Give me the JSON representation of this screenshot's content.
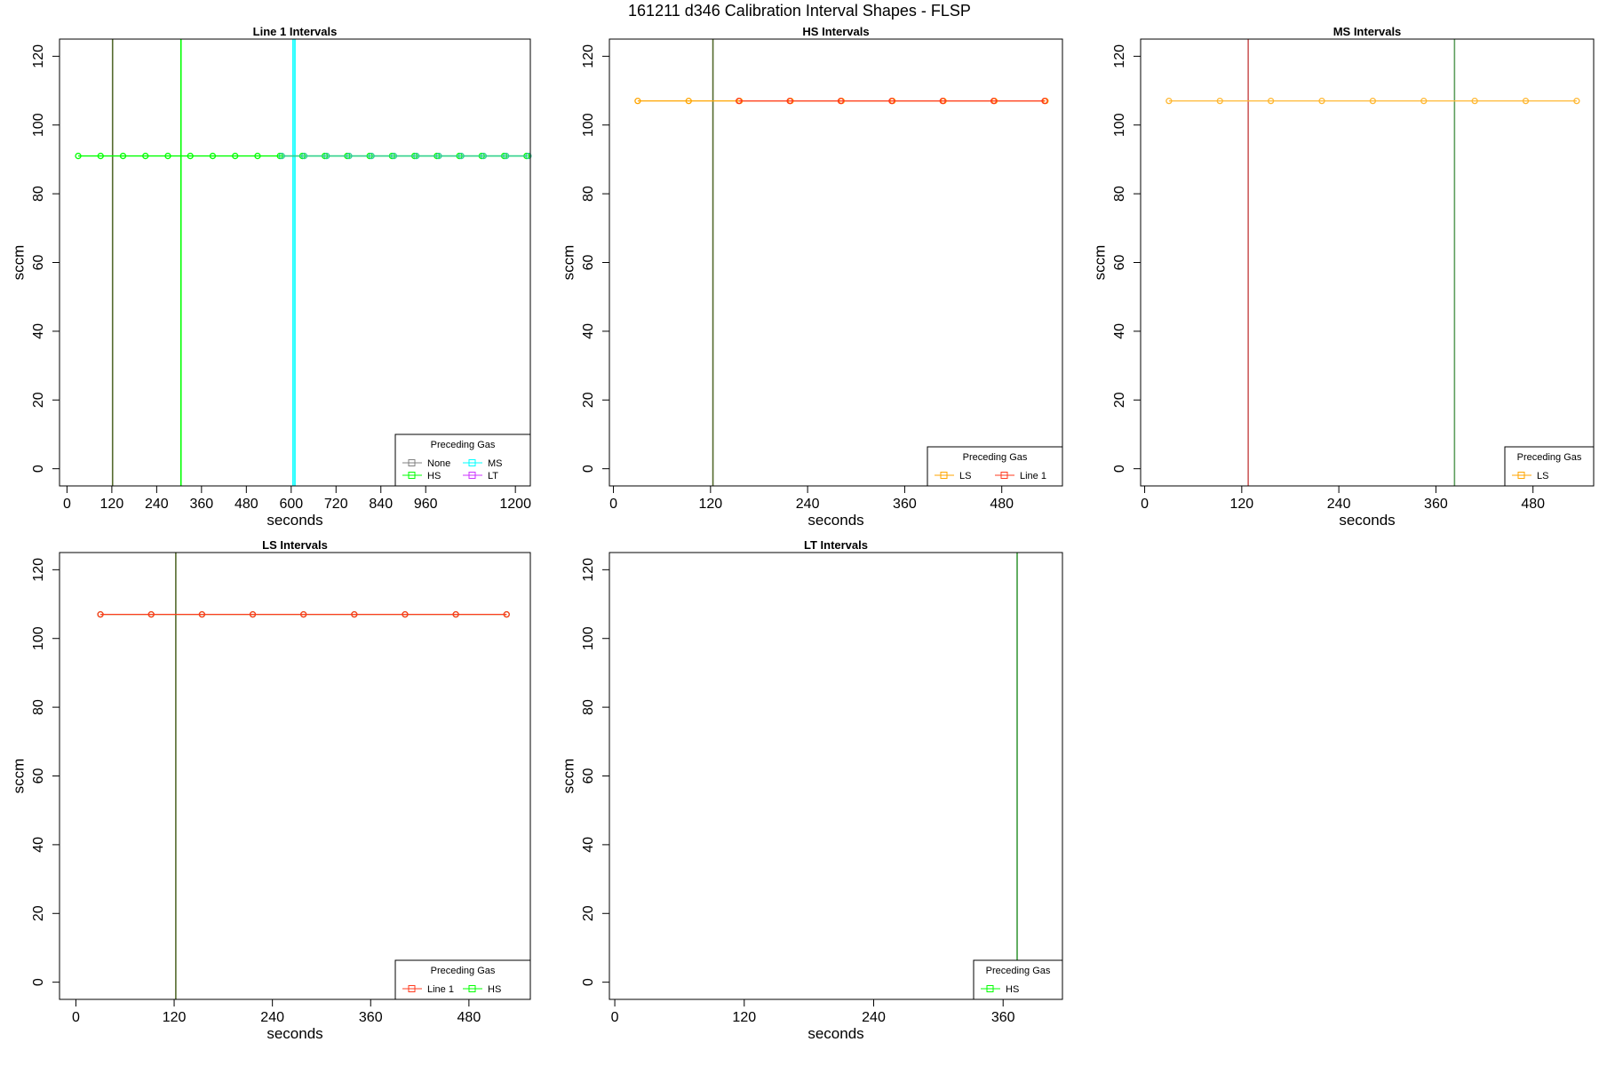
{
  "page": {
    "title": "161211   d346   Calibration Interval Shapes - FLSP"
  },
  "chart_data": [
    {
      "type": "line",
      "title": "Line 1 Intervals",
      "xlabel": "seconds",
      "ylabel": "sccm",
      "xlim": [
        -20,
        1240
      ],
      "ylim": [
        -5,
        125
      ],
      "xticks": [
        0,
        120,
        240,
        360,
        480,
        600,
        720,
        840,
        960,
        1200
      ],
      "yticks": [
        0,
        20,
        40,
        60,
        80,
        100,
        120
      ],
      "grid": false,
      "legend": {
        "title": "Preceding Gas",
        "position": "bottom-right",
        "columns": 2,
        "entries": [
          {
            "name": "None",
            "color": "#808080"
          },
          {
            "name": "MS",
            "color": "#00ffff"
          },
          {
            "name": "HS",
            "color": "#00ff00"
          },
          {
            "name": "LT",
            "color": "#cc33ff"
          }
        ]
      },
      "vlines": [
        {
          "x": 122,
          "color": "#556b2f"
        },
        {
          "x": 305,
          "color": "#00ff00"
        },
        {
          "x": 605,
          "color": "#00ffff"
        },
        {
          "x": 610,
          "color": "#00ffff"
        }
      ],
      "series": [
        {
          "name": "HS",
          "color": "#00ff00",
          "x": [
            30,
            90,
            150,
            210,
            270,
            330,
            390,
            450,
            510,
            570,
            630,
            690,
            750,
            810,
            870,
            930,
            990,
            1050,
            1110,
            1170,
            1230
          ],
          "values": [
            91,
            91,
            91,
            91,
            91,
            91,
            91,
            91,
            91,
            91,
            91,
            91,
            91,
            91,
            91,
            91,
            91,
            91,
            91,
            91,
            91
          ]
        },
        {
          "name": "MS",
          "color": "#33cc99",
          "x": [
            575,
            635,
            695,
            755,
            815,
            875,
            935,
            995,
            1055,
            1115,
            1175,
            1235
          ],
          "values": [
            91,
            91,
            91,
            91,
            91,
            91,
            91,
            91,
            91,
            91,
            91,
            91
          ]
        }
      ]
    },
    {
      "type": "line",
      "title": "HS Intervals",
      "xlabel": "seconds",
      "ylabel": "sccm",
      "xlim": [
        -5,
        555
      ],
      "ylim": [
        -5,
        125
      ],
      "xticks": [
        0,
        120,
        240,
        360,
        480
      ],
      "yticks": [
        0,
        20,
        40,
        60,
        80,
        100,
        120
      ],
      "grid": false,
      "legend": {
        "title": "Preceding Gas",
        "position": "bottom-right",
        "columns": 2,
        "entries": [
          {
            "name": "LS",
            "color": "#ffa500"
          },
          {
            "name": "Line 1",
            "color": "#ff3b1f"
          }
        ]
      },
      "vlines": [
        {
          "x": 123,
          "color": "#556b2f"
        }
      ],
      "series": [
        {
          "name": "LS",
          "color": "#ffa500",
          "x": [
            30,
            93,
            156,
            219,
            282,
            345,
            408,
            471,
            534
          ],
          "values": [
            107,
            107,
            107,
            107,
            107,
            107,
            107,
            107,
            107
          ]
        },
        {
          "name": "Line 1",
          "color": "#ff3b1f",
          "x": [
            155,
            218,
            281,
            344,
            407,
            470,
            533
          ],
          "values": [
            107,
            107,
            107,
            107,
            107,
            107,
            107
          ]
        }
      ]
    },
    {
      "type": "line",
      "title": "MS Intervals",
      "xlabel": "seconds",
      "ylabel": "sccm",
      "xlim": [
        -5,
        555
      ],
      "ylim": [
        -5,
        125
      ],
      "xticks": [
        0,
        120,
        240,
        360,
        480
      ],
      "yticks": [
        0,
        20,
        40,
        60,
        80,
        100,
        120
      ],
      "grid": false,
      "legend": {
        "title": "Preceding Gas",
        "position": "bottom-right",
        "columns": 1,
        "entries": [
          {
            "name": "LS",
            "color": "#ffa500"
          }
        ]
      },
      "vlines": [
        {
          "x": 128,
          "color": "#cd5c5c"
        },
        {
          "x": 383,
          "color": "#5e9e5e"
        }
      ],
      "series": [
        {
          "name": "LS",
          "color": "#ffb833",
          "x": [
            30,
            93,
            156,
            219,
            282,
            345,
            408,
            471,
            534
          ],
          "values": [
            107,
            107,
            107,
            107,
            107,
            107,
            107,
            107,
            107
          ]
        }
      ]
    },
    {
      "type": "line",
      "title": "LS Intervals",
      "xlabel": "seconds",
      "ylabel": "sccm",
      "xlim": [
        -20,
        555
      ],
      "ylim": [
        -5,
        125
      ],
      "xticks": [
        0,
        120,
        240,
        360,
        480
      ],
      "yticks": [
        0,
        20,
        40,
        60,
        80,
        100,
        120
      ],
      "grid": false,
      "legend": {
        "title": "Preceding Gas",
        "position": "bottom-right",
        "columns": 2,
        "entries": [
          {
            "name": "Line 1",
            "color": "#ff3b1f"
          },
          {
            "name": "HS",
            "color": "#00ff00"
          }
        ]
      },
      "vlines": [
        {
          "x": 122,
          "color": "#556b2f"
        }
      ],
      "series": [
        {
          "name": "HS",
          "color": "#66cc33",
          "x": [
            30,
            92,
            154,
            216,
            278,
            340,
            402,
            464,
            526
          ],
          "values": [
            107,
            107,
            107,
            107,
            107,
            107,
            107,
            107,
            107
          ]
        },
        {
          "name": "Line 1",
          "color": "#ff3b1f",
          "x": [
            30,
            92,
            154,
            216,
            278,
            340,
            402,
            464,
            526
          ],
          "values": [
            107,
            107,
            107,
            107,
            107,
            107,
            107,
            107,
            107
          ]
        }
      ]
    },
    {
      "type": "line",
      "title": "LT Intervals",
      "xlabel": "seconds",
      "ylabel": "sccm",
      "xlim": [
        -5,
        415
      ],
      "ylim": [
        -5,
        125
      ],
      "xticks": [
        0,
        120,
        240,
        360
      ],
      "yticks": [
        0,
        20,
        40,
        60,
        80,
        100,
        120
      ],
      "grid": false,
      "legend": {
        "title": "Preceding Gas",
        "position": "bottom-right",
        "columns": 1,
        "entries": [
          {
            "name": "HS",
            "color": "#00ff00"
          }
        ]
      },
      "vlines": [
        {
          "x": 373,
          "color": "#3c9a3c"
        }
      ],
      "series": []
    }
  ]
}
